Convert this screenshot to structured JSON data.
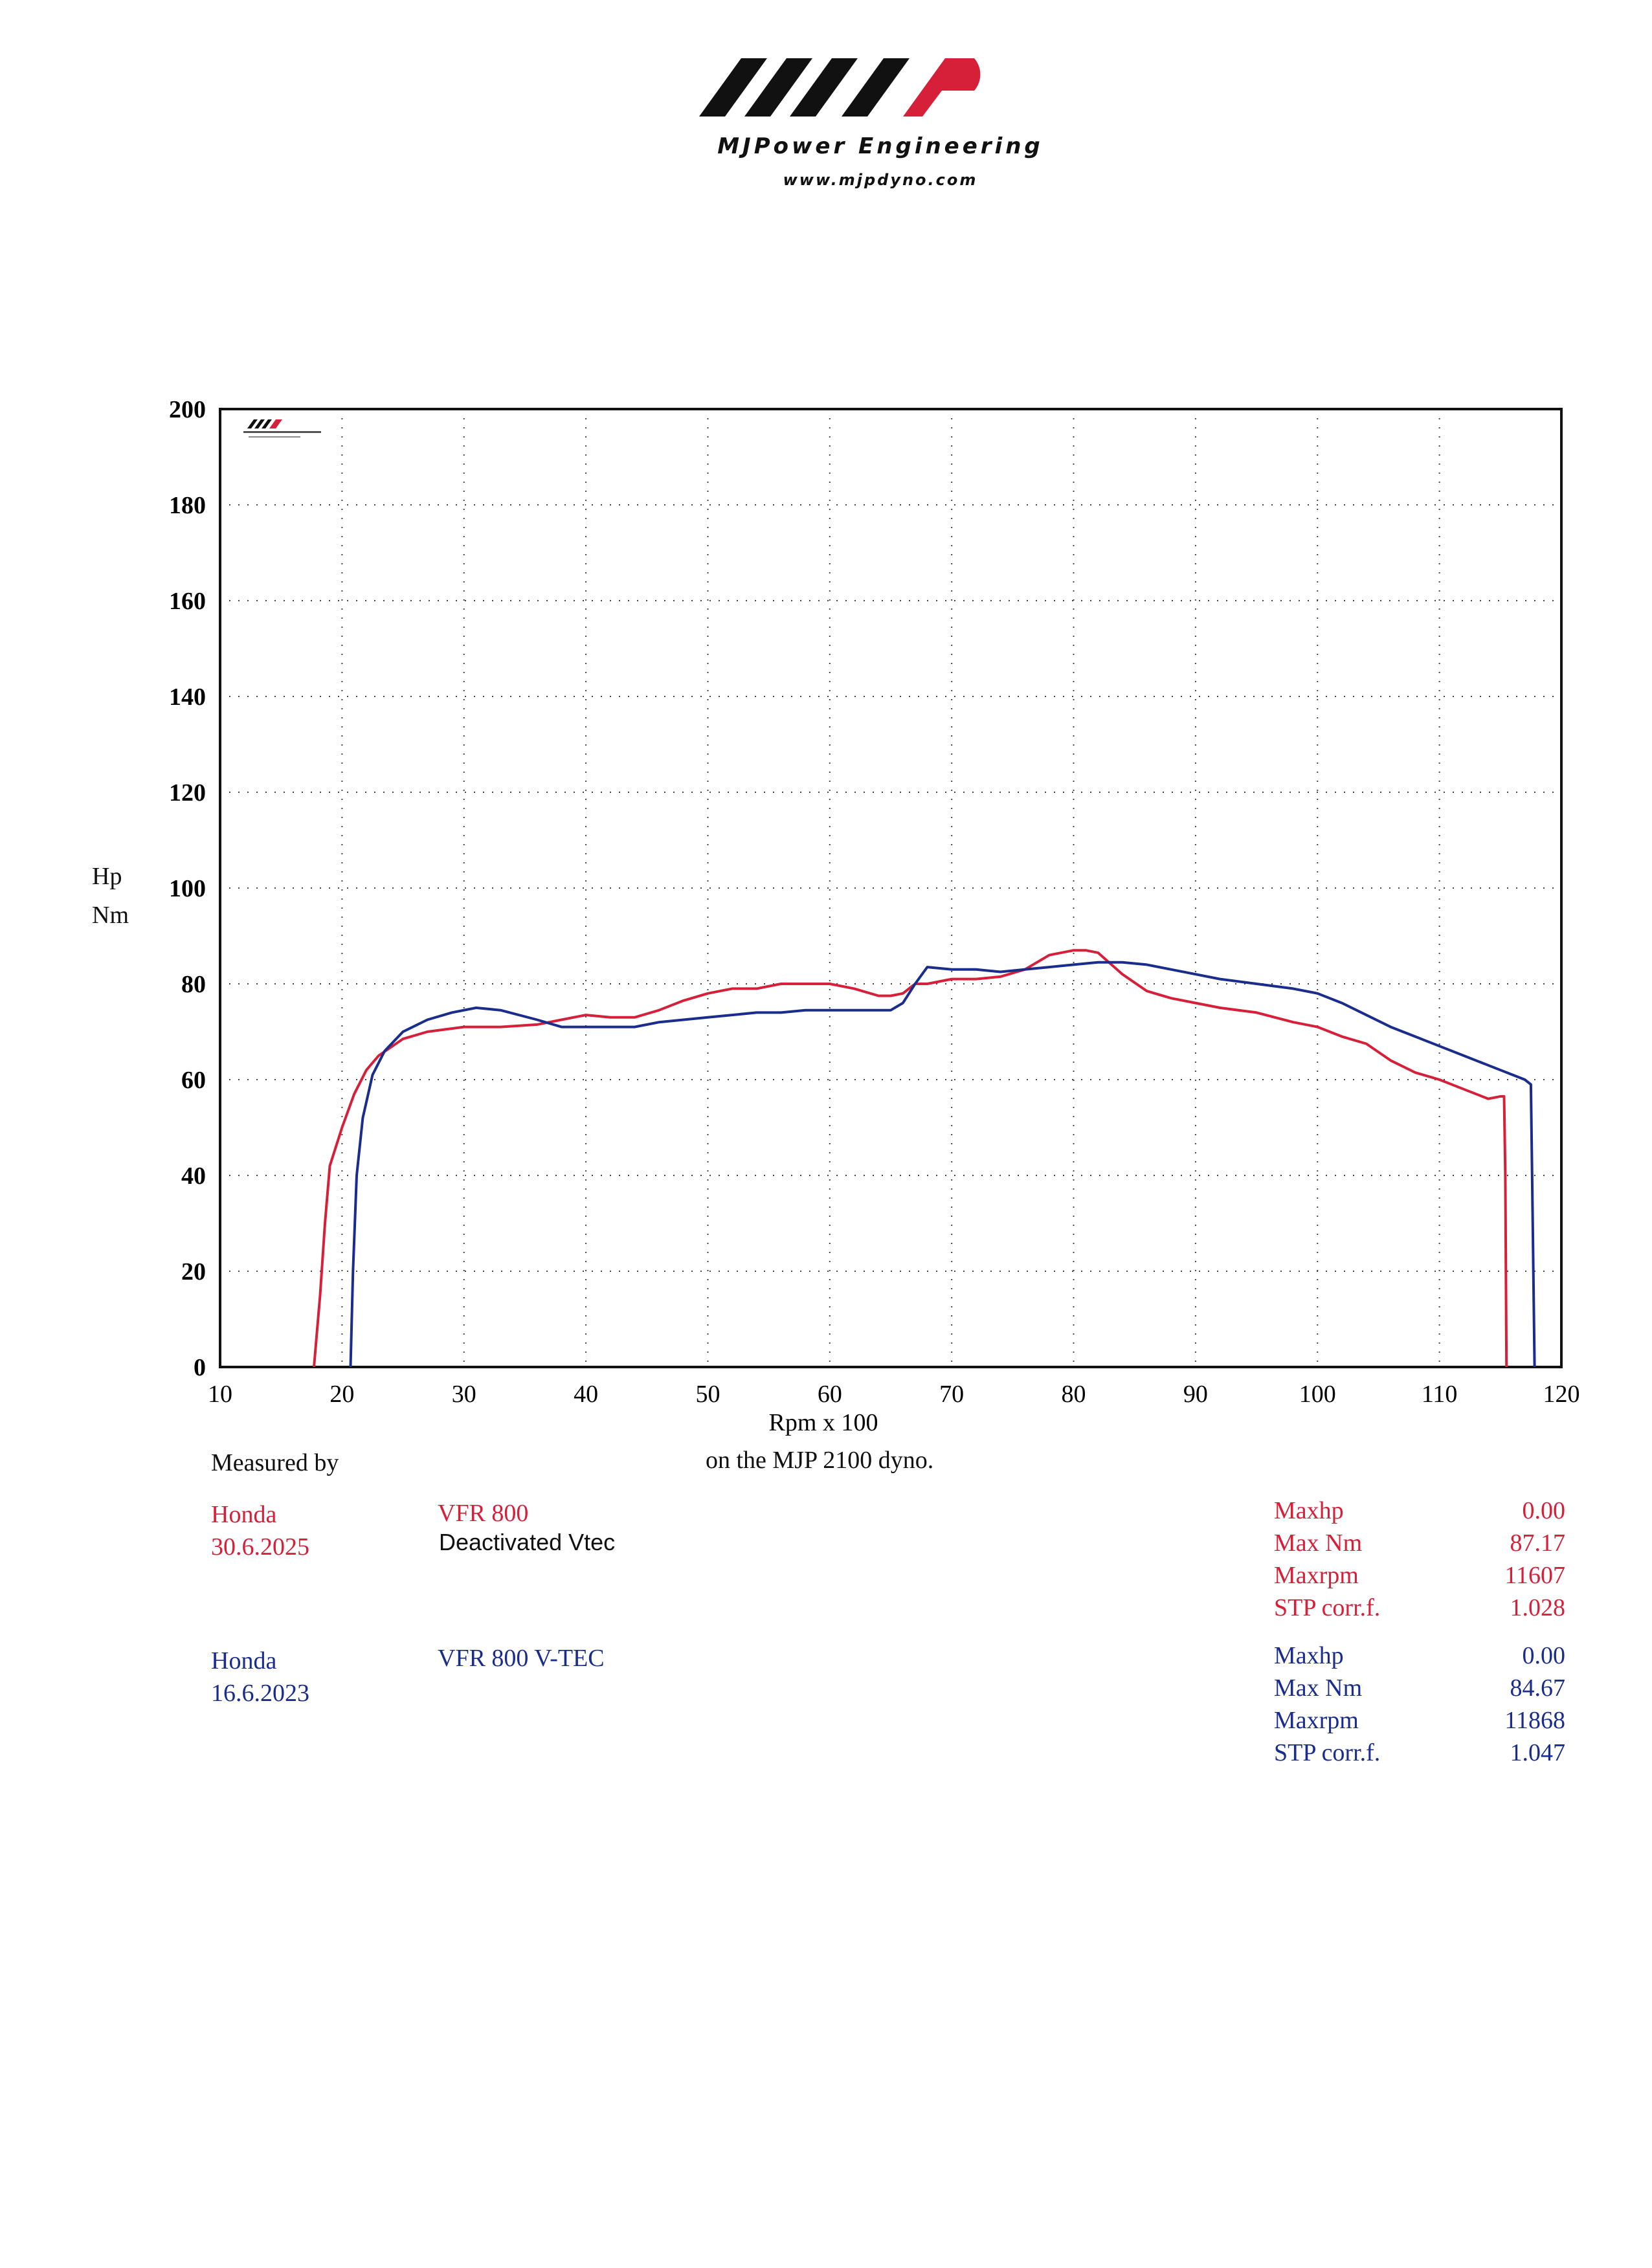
{
  "header": {
    "brand": "MJPower Engineering",
    "url": "www.mjpdyno.com"
  },
  "chart_data": {
    "type": "line",
    "title": "",
    "xlabel": "Rpm x 100",
    "ylabel": [
      "Hp",
      "Nm"
    ],
    "xlim": [
      10,
      120
    ],
    "ylim": [
      0,
      200
    ],
    "x_ticks": [
      10,
      20,
      30,
      40,
      50,
      60,
      70,
      80,
      90,
      100,
      110,
      120
    ],
    "y_ticks": [
      0,
      20,
      40,
      60,
      80,
      100,
      120,
      140,
      160,
      180,
      200
    ],
    "grid": true,
    "series": [
      {
        "color": "#d6203a",
        "points": [
          [
            17.7,
            0
          ],
          [
            18.2,
            15
          ],
          [
            18.6,
            30
          ],
          [
            19,
            42
          ],
          [
            20,
            50
          ],
          [
            21,
            57
          ],
          [
            22,
            62
          ],
          [
            23,
            65
          ],
          [
            25,
            68.5
          ],
          [
            27,
            70
          ],
          [
            30,
            71
          ],
          [
            33,
            71
          ],
          [
            36,
            71.5
          ],
          [
            38,
            72.5
          ],
          [
            40,
            73.5
          ],
          [
            42,
            73
          ],
          [
            44,
            73
          ],
          [
            46,
            74.5
          ],
          [
            48,
            76.5
          ],
          [
            50,
            78
          ],
          [
            52,
            79
          ],
          [
            54,
            79
          ],
          [
            56,
            80
          ],
          [
            58,
            80
          ],
          [
            60,
            80
          ],
          [
            62,
            79
          ],
          [
            64,
            77.5
          ],
          [
            65,
            77.5
          ],
          [
            66,
            78
          ],
          [
            67,
            80
          ],
          [
            68,
            80
          ],
          [
            70,
            81
          ],
          [
            72,
            81
          ],
          [
            74,
            81.5
          ],
          [
            76,
            83
          ],
          [
            78,
            86
          ],
          [
            80,
            87
          ],
          [
            81,
            87
          ],
          [
            82,
            86.5
          ],
          [
            84,
            82
          ],
          [
            86,
            78.5
          ],
          [
            88,
            77
          ],
          [
            90,
            76
          ],
          [
            92,
            75
          ],
          [
            95,
            74
          ],
          [
            98,
            72
          ],
          [
            100,
            71
          ],
          [
            102,
            69
          ],
          [
            104,
            67.5
          ],
          [
            106,
            64
          ],
          [
            108,
            61.5
          ],
          [
            110,
            60
          ],
          [
            112,
            58
          ],
          [
            113,
            57
          ],
          [
            114,
            56
          ],
          [
            115,
            56.5
          ],
          [
            115.3,
            56.5
          ],
          [
            115.4,
            40
          ],
          [
            115.5,
            0
          ]
        ]
      },
      {
        "color": "#1a2c8c",
        "points": [
          [
            20.7,
            0
          ],
          [
            20.9,
            20
          ],
          [
            21.2,
            40
          ],
          [
            21.7,
            52
          ],
          [
            22.5,
            61
          ],
          [
            23.5,
            66
          ],
          [
            25,
            70
          ],
          [
            27,
            72.5
          ],
          [
            29,
            74
          ],
          [
            31,
            75
          ],
          [
            33,
            74.5
          ],
          [
            36,
            72.5
          ],
          [
            38,
            71
          ],
          [
            40,
            71
          ],
          [
            42,
            71
          ],
          [
            44,
            71
          ],
          [
            46,
            72
          ],
          [
            48,
            72.5
          ],
          [
            50,
            73
          ],
          [
            52,
            73.5
          ],
          [
            54,
            74
          ],
          [
            56,
            74
          ],
          [
            58,
            74.5
          ],
          [
            60,
            74.5
          ],
          [
            62,
            74.5
          ],
          [
            64,
            74.5
          ],
          [
            65,
            74.5
          ],
          [
            66,
            76
          ],
          [
            67,
            80
          ],
          [
            68,
            83.5
          ],
          [
            70,
            83
          ],
          [
            72,
            83
          ],
          [
            74,
            82.5
          ],
          [
            76,
            83
          ],
          [
            78,
            83.5
          ],
          [
            80,
            84
          ],
          [
            82,
            84.5
          ],
          [
            84,
            84.5
          ],
          [
            86,
            84
          ],
          [
            88,
            83
          ],
          [
            90,
            82
          ],
          [
            92,
            81
          ],
          [
            95,
            80
          ],
          [
            98,
            79
          ],
          [
            100,
            78
          ],
          [
            102,
            76
          ],
          [
            104,
            73.5
          ],
          [
            106,
            71
          ],
          [
            108,
            69
          ],
          [
            110,
            67
          ],
          [
            112,
            65
          ],
          [
            114,
            63
          ],
          [
            115,
            62
          ],
          [
            116,
            61
          ],
          [
            117,
            60
          ],
          [
            117.5,
            59
          ],
          [
            117.6,
            40
          ],
          [
            117.8,
            0
          ]
        ]
      }
    ]
  },
  "footer": {
    "measured_by_label": "Measured by",
    "dyno_label": "on the MJP 2100 dyno.",
    "runs": [
      {
        "make": "Honda",
        "date": "30.6.2025",
        "model": "VFR 800",
        "note": "Deactivated Vtec",
        "color": "#d6203a",
        "stats": {
          "maxhp_label": "Maxhp",
          "maxhp": "0.00",
          "maxnm_label": "Max Nm",
          "maxnm": "87.17",
          "maxrpm_label": "Maxrpm",
          "maxrpm": "11607",
          "stp_label": "STP corr.f.",
          "stp": "1.028"
        }
      },
      {
        "make": "Honda",
        "date": "16.6.2023",
        "model": "VFR 800 V-TEC",
        "color": "#1a2c8c",
        "stats": {
          "maxhp_label": "Maxhp",
          "maxhp": "0.00",
          "maxnm_label": "Max Nm",
          "maxnm": "84.67",
          "maxrpm_label": "Maxrpm",
          "maxrpm": "11868",
          "stp_label": "STP corr.f.",
          "stp": "1.047"
        }
      }
    ]
  }
}
